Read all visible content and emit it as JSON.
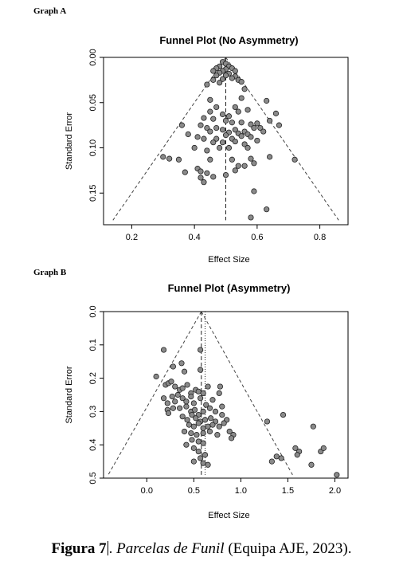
{
  "panels": {
    "a_label": "Graph A",
    "b_label": "Graph B"
  },
  "caption": {
    "figure": "Figura 7",
    "title": "Parcelas de Funil",
    "source": "(Equipa AJE, 2023)."
  },
  "colors": {
    "point_fill": "#8a8a8a",
    "point_stroke": "#222222",
    "axis": "#000000"
  },
  "chart_data": [
    {
      "type": "scatter",
      "title": "Funnel Plot (No Asymmetry)",
      "xlabel": "Effect Size",
      "ylabel": "Standard Error",
      "xlim": [
        0.11,
        0.89
      ],
      "ylim": [
        0.0,
        0.185
      ],
      "y_reversed": true,
      "xticks": [
        0.2,
        0.4,
        0.6,
        0.8
      ],
      "yticks": [
        0.0,
        0.05,
        0.1,
        0.15
      ],
      "xtick_labels": [
        "0.2",
        "0.4",
        "0.6",
        "0.8"
      ],
      "ytick_labels": [
        "0.00",
        "0.05",
        "0.10",
        "0.15"
      ],
      "funnel": {
        "apex": [
          0.5,
          0.0
        ],
        "left_base": [
          0.14,
          0.18
        ],
        "right_base": [
          0.86,
          0.18
        ]
      },
      "mean_lines": [
        {
          "x": 0.5,
          "style": "dashed"
        }
      ],
      "points": [
        [
          0.49,
          0.005
        ],
        [
          0.5,
          0.007
        ],
        [
          0.48,
          0.01
        ],
        [
          0.51,
          0.01
        ],
        [
          0.47,
          0.012
        ],
        [
          0.52,
          0.012
        ],
        [
          0.5,
          0.013
        ],
        [
          0.49,
          0.015
        ],
        [
          0.53,
          0.015
        ],
        [
          0.46,
          0.015
        ],
        [
          0.48,
          0.017
        ],
        [
          0.51,
          0.018
        ],
        [
          0.5,
          0.02
        ],
        [
          0.47,
          0.02
        ],
        [
          0.53,
          0.021
        ],
        [
          0.52,
          0.023
        ],
        [
          0.49,
          0.024
        ],
        [
          0.46,
          0.025
        ],
        [
          0.54,
          0.025
        ],
        [
          0.48,
          0.028
        ],
        [
          0.55,
          0.027
        ],
        [
          0.44,
          0.03
        ],
        [
          0.56,
          0.035
        ],
        [
          0.45,
          0.047
        ],
        [
          0.55,
          0.045
        ],
        [
          0.47,
          0.055
        ],
        [
          0.53,
          0.055
        ],
        [
          0.63,
          0.048
        ],
        [
          0.45,
          0.06
        ],
        [
          0.49,
          0.063
        ],
        [
          0.51,
          0.065
        ],
        [
          0.54,
          0.06
        ],
        [
          0.57,
          0.058
        ],
        [
          0.66,
          0.062
        ],
        [
          0.43,
          0.067
        ],
        [
          0.46,
          0.068
        ],
        [
          0.5,
          0.07
        ],
        [
          0.52,
          0.072
        ],
        [
          0.55,
          0.072
        ],
        [
          0.58,
          0.074
        ],
        [
          0.6,
          0.073
        ],
        [
          0.64,
          0.07
        ],
        [
          0.67,
          0.075
        ],
        [
          0.36,
          0.075
        ],
        [
          0.42,
          0.075
        ],
        [
          0.44,
          0.078
        ],
        [
          0.47,
          0.078
        ],
        [
          0.49,
          0.08
        ],
        [
          0.53,
          0.08
        ],
        [
          0.56,
          0.082
        ],
        [
          0.59,
          0.078
        ],
        [
          0.61,
          0.078
        ],
        [
          0.62,
          0.082
        ],
        [
          0.45,
          0.082
        ],
        [
          0.51,
          0.083
        ],
        [
          0.54,
          0.084
        ],
        [
          0.57,
          0.085
        ],
        [
          0.5,
          0.086
        ],
        [
          0.55,
          0.087
        ],
        [
          0.38,
          0.085
        ],
        [
          0.41,
          0.088
        ],
        [
          0.43,
          0.09
        ],
        [
          0.47,
          0.09
        ],
        [
          0.52,
          0.09
        ],
        [
          0.58,
          0.088
        ],
        [
          0.6,
          0.092
        ],
        [
          0.46,
          0.094
        ],
        [
          0.49,
          0.094
        ],
        [
          0.53,
          0.093
        ],
        [
          0.56,
          0.096
        ],
        [
          0.4,
          0.1
        ],
        [
          0.48,
          0.1
        ],
        [
          0.51,
          0.1
        ],
        [
          0.57,
          0.1
        ],
        [
          0.44,
          0.103
        ],
        [
          0.3,
          0.11
        ],
        [
          0.32,
          0.112
        ],
        [
          0.35,
          0.113
        ],
        [
          0.45,
          0.113
        ],
        [
          0.52,
          0.113
        ],
        [
          0.58,
          0.112
        ],
        [
          0.64,
          0.11
        ],
        [
          0.72,
          0.113
        ],
        [
          0.54,
          0.12
        ],
        [
          0.56,
          0.12
        ],
        [
          0.59,
          0.117
        ],
        [
          0.37,
          0.127
        ],
        [
          0.41,
          0.123
        ],
        [
          0.42,
          0.126
        ],
        [
          0.44,
          0.128
        ],
        [
          0.46,
          0.132
        ],
        [
          0.42,
          0.133
        ],
        [
          0.5,
          0.13
        ],
        [
          0.53,
          0.125
        ],
        [
          0.43,
          0.138
        ],
        [
          0.59,
          0.148
        ],
        [
          0.58,
          0.177
        ],
        [
          0.63,
          0.168
        ]
      ]
    },
    {
      "type": "scatter",
      "title": "Funnel Plot (Asymmetry)",
      "xlabel": "Effect Size",
      "ylabel": "Standard Error",
      "xlim": [
        -0.46,
        2.14
      ],
      "ylim": [
        0.0,
        0.5
      ],
      "y_reversed": true,
      "xticks": [
        0.0,
        0.5,
        1.0,
        1.5,
        2.0
      ],
      "yticks": [
        0.0,
        0.1,
        0.2,
        0.3,
        0.4,
        0.5
      ],
      "xtick_labels": [
        "0.0",
        "0.5",
        "1.0",
        "1.5",
        "2.0"
      ],
      "ytick_labels": [
        "0.0",
        "0.1",
        "0.2",
        "0.3",
        "0.4",
        "0.5"
      ],
      "funnel": {
        "apex": [
          0.58,
          0.0
        ],
        "left_base": [
          -0.41,
          0.49
        ],
        "right_base": [
          1.55,
          0.49
        ]
      },
      "mean_lines": [
        {
          "x": 0.58,
          "style": "dashed"
        },
        {
          "x": 0.62,
          "style": "dotted"
        }
      ],
      "points": [
        [
          0.18,
          0.115
        ],
        [
          0.28,
          0.165
        ],
        [
          0.37,
          0.155
        ],
        [
          0.4,
          0.18
        ],
        [
          0.57,
          0.115
        ],
        [
          0.57,
          0.175
        ],
        [
          0.1,
          0.195
        ],
        [
          0.2,
          0.22
        ],
        [
          0.23,
          0.215
        ],
        [
          0.26,
          0.21
        ],
        [
          0.3,
          0.225
        ],
        [
          0.35,
          0.235
        ],
        [
          0.38,
          0.23
        ],
        [
          0.43,
          0.22
        ],
        [
          0.47,
          0.245
        ],
        [
          0.52,
          0.235
        ],
        [
          0.55,
          0.24
        ],
        [
          0.6,
          0.245
        ],
        [
          0.65,
          0.225
        ],
        [
          0.78,
          0.225
        ],
        [
          0.18,
          0.26
        ],
        [
          0.22,
          0.275
        ],
        [
          0.27,
          0.255
        ],
        [
          0.3,
          0.27
        ],
        [
          0.33,
          0.25
        ],
        [
          0.38,
          0.26
        ],
        [
          0.42,
          0.27
        ],
        [
          0.47,
          0.255
        ],
        [
          0.5,
          0.275
        ],
        [
          0.57,
          0.26
        ],
        [
          0.63,
          0.28
        ],
        [
          0.7,
          0.265
        ],
        [
          0.77,
          0.245
        ],
        [
          0.22,
          0.295
        ],
        [
          0.23,
          0.305
        ],
        [
          0.28,
          0.29
        ],
        [
          0.35,
          0.29
        ],
        [
          0.42,
          0.285
        ],
        [
          0.47,
          0.3
        ],
        [
          0.51,
          0.295
        ],
        [
          0.55,
          0.31
        ],
        [
          0.6,
          0.3
        ],
        [
          0.67,
          0.29
        ],
        [
          0.73,
          0.3
        ],
        [
          0.8,
          0.285
        ],
        [
          0.38,
          0.315
        ],
        [
          0.43,
          0.325
        ],
        [
          0.48,
          0.31
        ],
        [
          0.52,
          0.32
        ],
        [
          0.57,
          0.33
        ],
        [
          0.62,
          0.325
        ],
        [
          0.68,
          0.32
        ],
        [
          0.73,
          0.33
        ],
        [
          0.8,
          0.31
        ],
        [
          0.85,
          0.325
        ],
        [
          0.45,
          0.34
        ],
        [
          0.5,
          0.345
        ],
        [
          0.55,
          0.335
        ],
        [
          0.6,
          0.35
        ],
        [
          0.65,
          0.345
        ],
        [
          0.7,
          0.34
        ],
        [
          0.77,
          0.345
        ],
        [
          0.82,
          0.335
        ],
        [
          0.88,
          0.36
        ],
        [
          0.92,
          0.37
        ],
        [
          0.4,
          0.36
        ],
        [
          0.47,
          0.365
        ],
        [
          0.53,
          0.37
        ],
        [
          0.6,
          0.365
        ],
        [
          0.67,
          0.36
        ],
        [
          0.75,
          0.37
        ],
        [
          0.48,
          0.385
        ],
        [
          0.55,
          0.39
        ],
        [
          0.6,
          0.395
        ],
        [
          0.9,
          0.38
        ],
        [
          0.42,
          0.4
        ],
        [
          0.5,
          0.41
        ],
        [
          0.55,
          0.42
        ],
        [
          0.62,
          0.43
        ],
        [
          0.5,
          0.45
        ],
        [
          0.57,
          0.44
        ],
        [
          0.6,
          0.455
        ],
        [
          0.65,
          0.46
        ],
        [
          1.28,
          0.33
        ],
        [
          1.45,
          0.31
        ],
        [
          1.38,
          0.435
        ],
        [
          1.43,
          0.44
        ],
        [
          1.33,
          0.45
        ],
        [
          1.58,
          0.41
        ],
        [
          1.62,
          0.42
        ],
        [
          1.75,
          0.46
        ],
        [
          1.77,
          0.345
        ],
        [
          1.85,
          0.42
        ],
        [
          1.88,
          0.41
        ],
        [
          1.6,
          0.43
        ],
        [
          2.02,
          0.49
        ]
      ]
    }
  ]
}
